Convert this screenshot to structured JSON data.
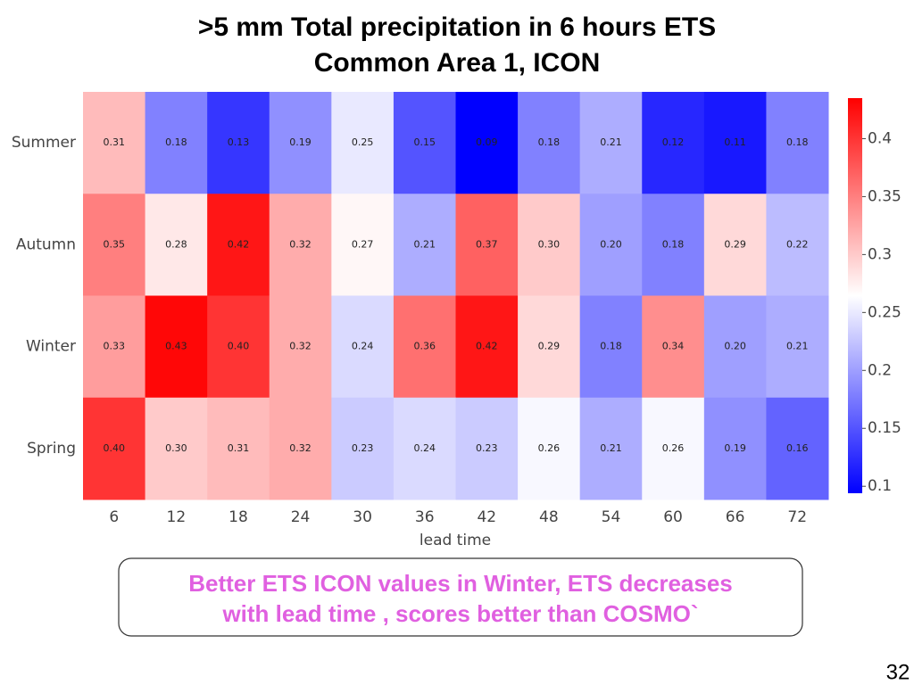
{
  "chart_data": {
    "type": "heatmap",
    "title": ">5 mm Total precipitation in 6 hours ETS",
    "subtitle": "Common Area 1, ICON",
    "x_label": "lead time",
    "categories": [
      6,
      12,
      18,
      24,
      30,
      36,
      42,
      48,
      54,
      60,
      66,
      72
    ],
    "rows": [
      "Summer",
      "Autumn",
      "Winter",
      "Spring"
    ],
    "values": [
      [
        0.31,
        0.18,
        0.13,
        0.19,
        0.25,
        0.15,
        0.09,
        0.18,
        0.21,
        0.12,
        0.11,
        0.18
      ],
      [
        0.35,
        0.28,
        0.42,
        0.32,
        0.27,
        0.21,
        0.37,
        0.3,
        0.2,
        0.18,
        0.29,
        0.22
      ],
      [
        0.33,
        0.43,
        0.4,
        0.32,
        0.24,
        0.36,
        0.42,
        0.29,
        0.18,
        0.34,
        0.2,
        0.21
      ],
      [
        0.4,
        0.3,
        0.31,
        0.32,
        0.23,
        0.24,
        0.23,
        0.26,
        0.21,
        0.26,
        0.19,
        0.16
      ]
    ],
    "value_labels": [
      [
        "0.31",
        "0.18",
        "0.13",
        "0.19",
        "0.25",
        "0.15",
        "0.09",
        "0.18",
        "0.21",
        "0.12",
        "0.11",
        "0.18"
      ],
      [
        "0.35",
        "0.28",
        "0.42",
        "0.32",
        "0.27",
        "0.21",
        "0.37",
        "0.30",
        "0.20",
        "0.18",
        "0.29",
        "0.22"
      ],
      [
        "0.33",
        "0.43",
        "0.40",
        "0.32",
        "0.24",
        "0.36",
        "0.42",
        "0.29",
        "0.18",
        "0.34",
        "0.20",
        "0.21"
      ],
      [
        "0.40",
        "0.30",
        "0.31",
        "0.32",
        "0.23",
        "0.24",
        "0.23",
        "0.26",
        "0.21",
        "0.26",
        "0.19",
        "0.16"
      ]
    ],
    "clim": [
      0.094,
      0.435
    ],
    "cticks": [
      0.1,
      0.15,
      0.2,
      0.25,
      0.3,
      0.35,
      0.4
    ],
    "colormap": [
      "#0000ff",
      "#ffffff",
      "#ff0000"
    ]
  },
  "annotation": [
    "Better  ETS ICON values in Winter, ETS decreases",
    "with lead time , scores better than COSMO`"
  ],
  "page_number": "32"
}
